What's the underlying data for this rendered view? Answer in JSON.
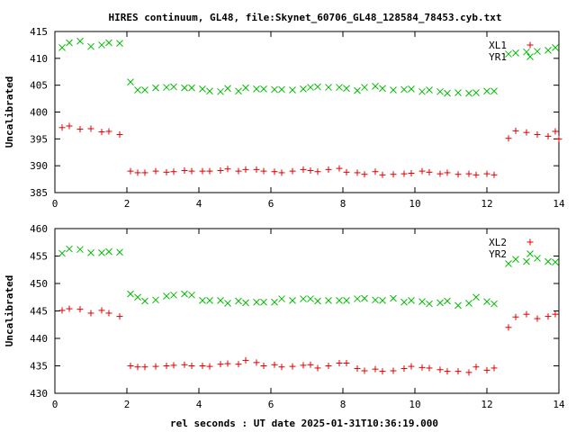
{
  "chart_title": "HIRES continuum, GL48, file:Skynet_60706_GL48_128584_78453.cyb.txt",
  "xlabel": "rel seconds : UT date 2025-01-31T10:36:19.000",
  "colors": {
    "series_a": "#dd0000",
    "series_b": "#00bb00",
    "frame": "#000000"
  },
  "chart_data": [
    {
      "type": "scatter",
      "ylabel": "Uncalibrated",
      "xlim": [
        0,
        14
      ],
      "ylim": [
        385,
        415
      ],
      "x_ticks": [
        0,
        2,
        4,
        6,
        8,
        10,
        12,
        14
      ],
      "y_ticks": [
        385,
        390,
        395,
        400,
        405,
        410,
        415
      ],
      "grid": false,
      "legend_position": "top-right",
      "series": [
        {
          "name": "XL1",
          "marker": "plus",
          "x": [
            0.2,
            0.4,
            0.7,
            1.0,
            1.3,
            1.5,
            1.8,
            2.1,
            2.3,
            2.5,
            2.8,
            3.1,
            3.3,
            3.6,
            3.8,
            4.1,
            4.3,
            4.6,
            4.8,
            5.1,
            5.3,
            5.6,
            5.8,
            6.1,
            6.3,
            6.6,
            6.9,
            7.1,
            7.3,
            7.6,
            7.9,
            8.1,
            8.4,
            8.6,
            8.9,
            9.1,
            9.4,
            9.7,
            9.9,
            10.2,
            10.4,
            10.7,
            10.9,
            11.2,
            11.5,
            11.7,
            12.0,
            12.2,
            12.6,
            12.8,
            13.1,
            13.4,
            13.7,
            13.9,
            14.0
          ],
          "y": [
            397.1,
            397.4,
            396.8,
            396.9,
            396.3,
            396.4,
            395.8,
            389.0,
            388.7,
            388.7,
            389.0,
            388.8,
            388.9,
            389.1,
            389.0,
            389.0,
            389.0,
            389.1,
            389.4,
            389.0,
            389.3,
            389.3,
            389.0,
            388.9,
            388.7,
            389.0,
            389.3,
            389.1,
            388.9,
            389.3,
            389.5,
            388.8,
            388.7,
            388.4,
            388.9,
            388.3,
            388.4,
            388.5,
            388.6,
            389.0,
            388.8,
            388.5,
            388.7,
            388.4,
            388.5,
            388.3,
            388.5,
            388.3,
            395.1,
            396.5,
            396.2,
            395.8,
            395.5,
            396.4,
            395.0
          ]
        },
        {
          "name": "YR1",
          "marker": "cross",
          "x": [
            0.2,
            0.4,
            0.7,
            1.0,
            1.3,
            1.5,
            1.8,
            2.1,
            2.3,
            2.5,
            2.8,
            3.1,
            3.3,
            3.6,
            3.8,
            4.1,
            4.3,
            4.6,
            4.8,
            5.1,
            5.3,
            5.6,
            5.8,
            6.1,
            6.3,
            6.6,
            6.9,
            7.1,
            7.3,
            7.6,
            7.9,
            8.1,
            8.4,
            8.6,
            8.9,
            9.1,
            9.4,
            9.7,
            9.9,
            10.2,
            10.4,
            10.7,
            10.9,
            11.2,
            11.5,
            11.7,
            12.0,
            12.2,
            12.6,
            12.8,
            13.1,
            13.4,
            13.7,
            13.9
          ],
          "y": [
            412.0,
            412.9,
            413.2,
            412.2,
            412.5,
            412.9,
            412.8,
            405.6,
            404.1,
            404.1,
            404.5,
            404.6,
            404.7,
            404.5,
            404.5,
            404.3,
            403.9,
            403.8,
            404.4,
            403.9,
            404.5,
            404.3,
            404.3,
            404.2,
            404.2,
            404.1,
            404.3,
            404.6,
            404.7,
            404.6,
            404.6,
            404.4,
            404.0,
            404.6,
            404.8,
            404.4,
            404.1,
            404.2,
            404.3,
            403.8,
            404.1,
            403.8,
            403.5,
            403.6,
            403.5,
            403.6,
            403.9,
            403.9,
            410.8,
            411.0,
            411.2,
            411.3,
            411.5,
            412.0
          ]
        }
      ]
    },
    {
      "type": "scatter",
      "ylabel": "Uncalibrated",
      "xlim": [
        0,
        14
      ],
      "ylim": [
        430,
        460
      ],
      "x_ticks": [
        0,
        2,
        4,
        6,
        8,
        10,
        12,
        14
      ],
      "y_ticks": [
        430,
        435,
        440,
        445,
        450,
        455,
        460
      ],
      "grid": false,
      "legend_position": "top-right",
      "series": [
        {
          "name": "XL2",
          "marker": "plus",
          "x": [
            0.2,
            0.4,
            0.7,
            1.0,
            1.3,
            1.5,
            1.8,
            2.1,
            2.3,
            2.5,
            2.8,
            3.1,
            3.3,
            3.6,
            3.8,
            4.1,
            4.3,
            4.6,
            4.8,
            5.1,
            5.3,
            5.6,
            5.8,
            6.1,
            6.3,
            6.6,
            6.9,
            7.1,
            7.3,
            7.6,
            7.9,
            8.1,
            8.4,
            8.6,
            8.9,
            9.1,
            9.4,
            9.7,
            9.9,
            10.2,
            10.4,
            10.7,
            10.9,
            11.2,
            11.5,
            11.7,
            12.0,
            12.2,
            12.6,
            12.8,
            13.1,
            13.4,
            13.7,
            13.9
          ],
          "y": [
            445.1,
            445.4,
            445.3,
            444.6,
            445.1,
            444.6,
            444.0,
            435.0,
            434.8,
            434.8,
            434.9,
            435.0,
            435.1,
            435.2,
            435.0,
            435.0,
            434.9,
            435.3,
            435.4,
            435.3,
            436.0,
            435.6,
            435.0,
            435.2,
            434.8,
            434.9,
            435.1,
            435.2,
            434.6,
            435.0,
            435.5,
            435.5,
            434.5,
            434.1,
            434.4,
            434.0,
            434.1,
            434.5,
            434.9,
            434.7,
            434.6,
            434.3,
            434.0,
            434.0,
            433.8,
            434.8,
            434.2,
            434.6,
            442.0,
            443.9,
            444.4,
            443.6,
            444.0,
            444.4
          ]
        },
        {
          "name": "YR2",
          "marker": "cross",
          "x": [
            0.2,
            0.4,
            0.7,
            1.0,
            1.3,
            1.5,
            1.8,
            2.1,
            2.3,
            2.5,
            2.8,
            3.1,
            3.3,
            3.6,
            3.8,
            4.1,
            4.3,
            4.6,
            4.8,
            5.1,
            5.3,
            5.6,
            5.8,
            6.1,
            6.3,
            6.6,
            6.9,
            7.1,
            7.3,
            7.6,
            7.9,
            8.1,
            8.4,
            8.6,
            8.9,
            9.1,
            9.4,
            9.7,
            9.9,
            10.2,
            10.4,
            10.7,
            10.9,
            11.2,
            11.5,
            11.7,
            12.0,
            12.2,
            12.6,
            12.8,
            13.1,
            13.4,
            13.7,
            13.9
          ],
          "y": [
            455.5,
            456.3,
            456.2,
            455.6,
            455.6,
            455.8,
            455.7,
            448.1,
            447.5,
            446.8,
            447.0,
            447.7,
            447.9,
            448.1,
            447.9,
            446.9,
            446.9,
            446.9,
            446.4,
            446.8,
            446.5,
            446.6,
            446.6,
            446.6,
            447.2,
            446.9,
            447.2,
            447.2,
            446.8,
            446.9,
            446.9,
            446.9,
            447.2,
            447.3,
            447.0,
            446.9,
            447.3,
            446.6,
            446.9,
            446.7,
            446.3,
            446.5,
            446.8,
            446.0,
            446.4,
            447.5,
            446.7,
            446.3,
            453.6,
            454.4,
            454.0,
            454.6,
            454.0,
            453.9
          ]
        }
      ]
    }
  ]
}
